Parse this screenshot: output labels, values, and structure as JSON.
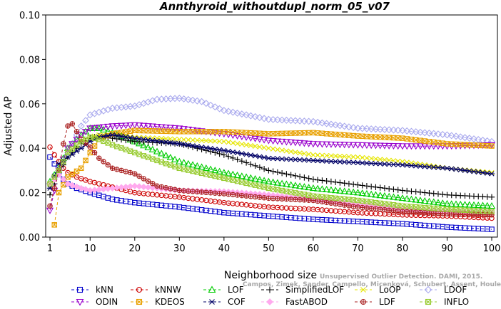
{
  "chart_data": {
    "type": "line",
    "title": "Annthyroid_withoutdupl_norm_05_v07",
    "xlabel": "Neighborhood size",
    "ylabel": "Adjusted AP",
    "xlim": [
      1,
      100
    ],
    "ylim": [
      0.0,
      0.1
    ],
    "xticks": [
      1,
      10,
      20,
      30,
      40,
      50,
      60,
      70,
      80,
      90,
      100
    ],
    "yticks": [
      0.0,
      0.02,
      0.04,
      0.06,
      0.08,
      0.1
    ],
    "ytick_labels": [
      "0.00",
      "0.02",
      "0.04",
      "0.06",
      "0.08",
      "0.10"
    ],
    "legend_placement": "bottom",
    "credit": {
      "line1": "Unsupervised Outlier Detection. DAMI, 2015.",
      "line2": "Campos, Zimek, Sander, Campello, Micenková, Schubert, Assent, Houle"
    },
    "series": [
      {
        "name": "kNN",
        "color": "#0000cc",
        "marker": "square",
        "points": [
          [
            1,
            0.036
          ],
          [
            2,
            0.033
          ],
          [
            3,
            0.029
          ],
          [
            4,
            0.026
          ],
          [
            5,
            0.024
          ],
          [
            7,
            0.022
          ],
          [
            10,
            0.02
          ],
          [
            15,
            0.017
          ],
          [
            20,
            0.0155
          ],
          [
            30,
            0.0135
          ],
          [
            40,
            0.011
          ],
          [
            50,
            0.0095
          ],
          [
            60,
            0.008
          ],
          [
            70,
            0.007
          ],
          [
            80,
            0.006
          ],
          [
            90,
            0.0045
          ],
          [
            100,
            0.0035
          ]
        ]
      },
      {
        "name": "kNNW",
        "color": "#cc0000",
        "marker": "circle",
        "points": [
          [
            1,
            0.0405
          ],
          [
            2,
            0.037
          ],
          [
            3,
            0.034
          ],
          [
            4,
            0.031
          ],
          [
            5,
            0.029
          ],
          [
            7,
            0.027
          ],
          [
            10,
            0.025
          ],
          [
            15,
            0.0225
          ],
          [
            20,
            0.02
          ],
          [
            30,
            0.018
          ],
          [
            40,
            0.0155
          ],
          [
            50,
            0.0135
          ],
          [
            60,
            0.0125
          ],
          [
            70,
            0.011
          ],
          [
            80,
            0.01
          ],
          [
            90,
            0.0095
          ],
          [
            100,
            0.0085
          ]
        ]
      },
      {
        "name": "LOF",
        "color": "#00cc00",
        "marker": "triangle",
        "points": [
          [
            1,
            0.025
          ],
          [
            3,
            0.031
          ],
          [
            5,
            0.04
          ],
          [
            8,
            0.046
          ],
          [
            10,
            0.049
          ],
          [
            12,
            0.049
          ],
          [
            15,
            0.047
          ],
          [
            20,
            0.043
          ],
          [
            30,
            0.034
          ],
          [
            40,
            0.029
          ],
          [
            50,
            0.025
          ],
          [
            60,
            0.022
          ],
          [
            70,
            0.02
          ],
          [
            80,
            0.0175
          ],
          [
            90,
            0.015
          ],
          [
            100,
            0.014
          ]
        ]
      },
      {
        "name": "SimplifiedLOF",
        "color": "#000000",
        "marker": "plus",
        "points": [
          [
            1,
            0.019
          ],
          [
            3,
            0.029
          ],
          [
            5,
            0.036
          ],
          [
            8,
            0.042
          ],
          [
            10,
            0.0445
          ],
          [
            12,
            0.0455
          ],
          [
            15,
            0.0445
          ],
          [
            20,
            0.043
          ],
          [
            30,
            0.042
          ],
          [
            40,
            0.037
          ],
          [
            50,
            0.03
          ],
          [
            60,
            0.026
          ],
          [
            70,
            0.0235
          ],
          [
            80,
            0.021
          ],
          [
            90,
            0.019
          ],
          [
            100,
            0.018
          ]
        ]
      },
      {
        "name": "LoOP",
        "color": "#e6e600",
        "marker": "cross",
        "points": [
          [
            1,
            0.022
          ],
          [
            3,
            0.03
          ],
          [
            5,
            0.038
          ],
          [
            8,
            0.043
          ],
          [
            10,
            0.045
          ],
          [
            12,
            0.046
          ],
          [
            15,
            0.046
          ],
          [
            20,
            0.045
          ],
          [
            30,
            0.044
          ],
          [
            40,
            0.043
          ],
          [
            50,
            0.04
          ],
          [
            60,
            0.037
          ],
          [
            70,
            0.036
          ],
          [
            80,
            0.034
          ],
          [
            90,
            0.031
          ],
          [
            100,
            0.029
          ]
        ]
      },
      {
        "name": "LDOF",
        "color": "#aaaaee",
        "marker": "diamond",
        "points": [
          [
            1,
            0.024
          ],
          [
            3,
            0.03
          ],
          [
            5,
            0.038
          ],
          [
            8,
            0.05
          ],
          [
            10,
            0.055
          ],
          [
            15,
            0.058
          ],
          [
            20,
            0.059
          ],
          [
            25,
            0.062
          ],
          [
            30,
            0.0625
          ],
          [
            35,
            0.061
          ],
          [
            40,
            0.057
          ],
          [
            50,
            0.053
          ],
          [
            60,
            0.052
          ],
          [
            70,
            0.049
          ],
          [
            80,
            0.048
          ],
          [
            90,
            0.046
          ],
          [
            100,
            0.043
          ]
        ]
      },
      {
        "name": "ODIN",
        "color": "#9900cc",
        "marker": "triangle-down",
        "points": [
          [
            1,
            0.012
          ],
          [
            3,
            0.03
          ],
          [
            5,
            0.04
          ],
          [
            8,
            0.046
          ],
          [
            10,
            0.049
          ],
          [
            15,
            0.05
          ],
          [
            20,
            0.0505
          ],
          [
            30,
            0.049
          ],
          [
            40,
            0.0465
          ],
          [
            50,
            0.0435
          ],
          [
            60,
            0.042
          ],
          [
            70,
            0.0415
          ],
          [
            80,
            0.041
          ],
          [
            90,
            0.041
          ],
          [
            100,
            0.0415
          ]
        ]
      },
      {
        "name": "KDEOS",
        "color": "#e8a000",
        "marker": "boxx",
        "points": [
          [
            2,
            0.0055
          ],
          [
            3,
            0.02
          ],
          [
            5,
            0.027
          ],
          [
            8,
            0.031
          ],
          [
            10,
            0.038
          ],
          [
            12,
            0.044
          ],
          [
            15,
            0.0465
          ],
          [
            20,
            0.048
          ],
          [
            30,
            0.0475
          ],
          [
            40,
            0.0475
          ],
          [
            50,
            0.0465
          ],
          [
            60,
            0.047
          ],
          [
            70,
            0.0455
          ],
          [
            80,
            0.0445
          ],
          [
            90,
            0.042
          ],
          [
            100,
            0.041
          ]
        ]
      },
      {
        "name": "COF",
        "color": "#000066",
        "marker": "asterisk",
        "points": [
          [
            1,
            0.022
          ],
          [
            3,
            0.033
          ],
          [
            5,
            0.036
          ],
          [
            8,
            0.04
          ],
          [
            10,
            0.043
          ],
          [
            12,
            0.045
          ],
          [
            15,
            0.046
          ],
          [
            20,
            0.0445
          ],
          [
            30,
            0.042
          ],
          [
            40,
            0.039
          ],
          [
            50,
            0.0355
          ],
          [
            60,
            0.0345
          ],
          [
            70,
            0.0335
          ],
          [
            80,
            0.0325
          ],
          [
            90,
            0.031
          ],
          [
            100,
            0.0285
          ]
        ]
      },
      {
        "name": "FastABOD",
        "color": "#ffaaee",
        "marker": "diamond-filled",
        "points": [
          [
            1,
            0.024
          ],
          [
            3,
            0.028
          ],
          [
            5,
            0.024
          ],
          [
            8,
            0.022
          ],
          [
            10,
            0.021
          ],
          [
            15,
            0.022
          ],
          [
            20,
            0.023
          ],
          [
            30,
            0.021
          ],
          [
            40,
            0.0205
          ],
          [
            50,
            0.019
          ],
          [
            60,
            0.017
          ],
          [
            70,
            0.0145
          ],
          [
            80,
            0.0125
          ],
          [
            90,
            0.0115
          ],
          [
            100,
            0.011
          ]
        ]
      },
      {
        "name": "LDF",
        "color": "#aa2222",
        "marker": "circle-plus",
        "points": [
          [
            1,
            0.014
          ],
          [
            3,
            0.03
          ],
          [
            4,
            0.042
          ],
          [
            5,
            0.05
          ],
          [
            6,
            0.051
          ],
          [
            8,
            0.044
          ],
          [
            10,
            0.0405
          ],
          [
            12,
            0.0355
          ],
          [
            15,
            0.031
          ],
          [
            20,
            0.0285
          ],
          [
            25,
            0.023
          ],
          [
            30,
            0.021
          ],
          [
            40,
            0.0195
          ],
          [
            50,
            0.0175
          ],
          [
            60,
            0.0165
          ],
          [
            70,
            0.0135
          ],
          [
            80,
            0.0115
          ],
          [
            90,
            0.0105
          ],
          [
            100,
            0.01
          ]
        ]
      },
      {
        "name": "INFLO",
        "color": "#99cc33",
        "marker": "boxx",
        "points": [
          [
            1,
            0.024
          ],
          [
            3,
            0.03
          ],
          [
            5,
            0.038
          ],
          [
            8,
            0.043
          ],
          [
            10,
            0.045
          ],
          [
            12,
            0.044
          ],
          [
            15,
            0.0415
          ],
          [
            20,
            0.038
          ],
          [
            30,
            0.031
          ],
          [
            40,
            0.0265
          ],
          [
            50,
            0.022
          ],
          [
            60,
            0.0185
          ],
          [
            70,
            0.0165
          ],
          [
            80,
            0.014
          ],
          [
            90,
            0.0125
          ],
          [
            100,
            0.0115
          ]
        ]
      }
    ]
  }
}
